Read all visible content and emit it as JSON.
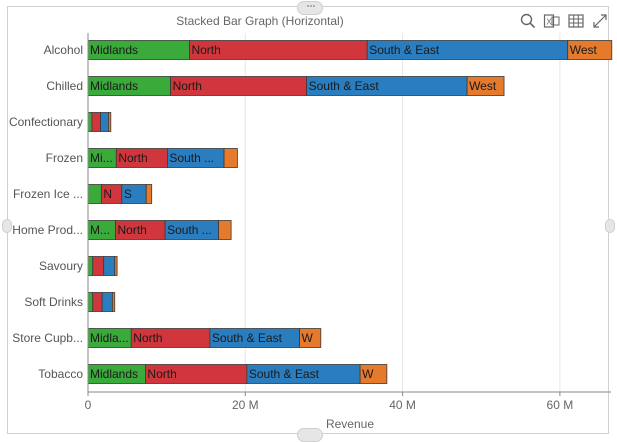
{
  "title": "Stacked Bar Graph (Horizontal)",
  "toolbar": {
    "icons": [
      "search-icon",
      "export-excel-icon",
      "table-view-icon",
      "expand-icon"
    ],
    "excel_letter": "X"
  },
  "colors": {
    "Midlands": "#3aaa3a",
    "North": "#d0363c",
    "South & East": "#2a7ec0",
    "West": "#e57a2c",
    "stroke": "#3a3a3a",
    "grid": "#e6e6e6",
    "axis": "#888888"
  },
  "chart_data": {
    "type": "bar",
    "orientation": "horizontal",
    "stacked": true,
    "xlabel": "Revenue",
    "xlim": [
      0,
      66500000
    ],
    "xticks": [
      0,
      20000000,
      40000000,
      60000000
    ],
    "xtick_labels": [
      "0",
      "20 M",
      "40 M",
      "60 M"
    ],
    "grid": true,
    "categories": [
      "Alcohol",
      "Chilled",
      "Confectionary",
      "Frozen",
      "Frozen Ice ...",
      "Home Prod...",
      "Savoury",
      "Soft Drinks",
      "Store Cupb...",
      "Tobacco"
    ],
    "series": [
      {
        "name": "Midlands",
        "values": [
          12900000,
          10500000,
          500000,
          3600000,
          1700000,
          3500000,
          600000,
          600000,
          5500000,
          7300000
        ],
        "labels": [
          "Midlands",
          "Midlands",
          "",
          "Mi...",
          "",
          "M...",
          "",
          "",
          "Midla...",
          "Midlands"
        ]
      },
      {
        "name": "North",
        "values": [
          22600000,
          17300000,
          1100000,
          6500000,
          2600000,
          6300000,
          1400000,
          1200000,
          10000000,
          12900000
        ],
        "labels": [
          "North",
          "North",
          "",
          "North",
          "N",
          "North",
          "",
          "",
          "North",
          "North"
        ]
      },
      {
        "name": "South & East",
        "values": [
          25500000,
          20400000,
          1000000,
          7200000,
          3100000,
          6800000,
          1400000,
          1300000,
          11400000,
          14400000
        ],
        "labels": [
          "South & East",
          "South & East",
          "",
          "South ...",
          "S",
          "South ...",
          "",
          "",
          "South & East",
          "South & East"
        ]
      },
      {
        "name": "West",
        "values": [
          5600000,
          4700000,
          300000,
          1700000,
          700000,
          1600000,
          300000,
          300000,
          2700000,
          3400000
        ],
        "labels": [
          "West",
          "West",
          "",
          "",
          "",
          "",
          "",
          "",
          "W",
          "W"
        ]
      }
    ]
  }
}
